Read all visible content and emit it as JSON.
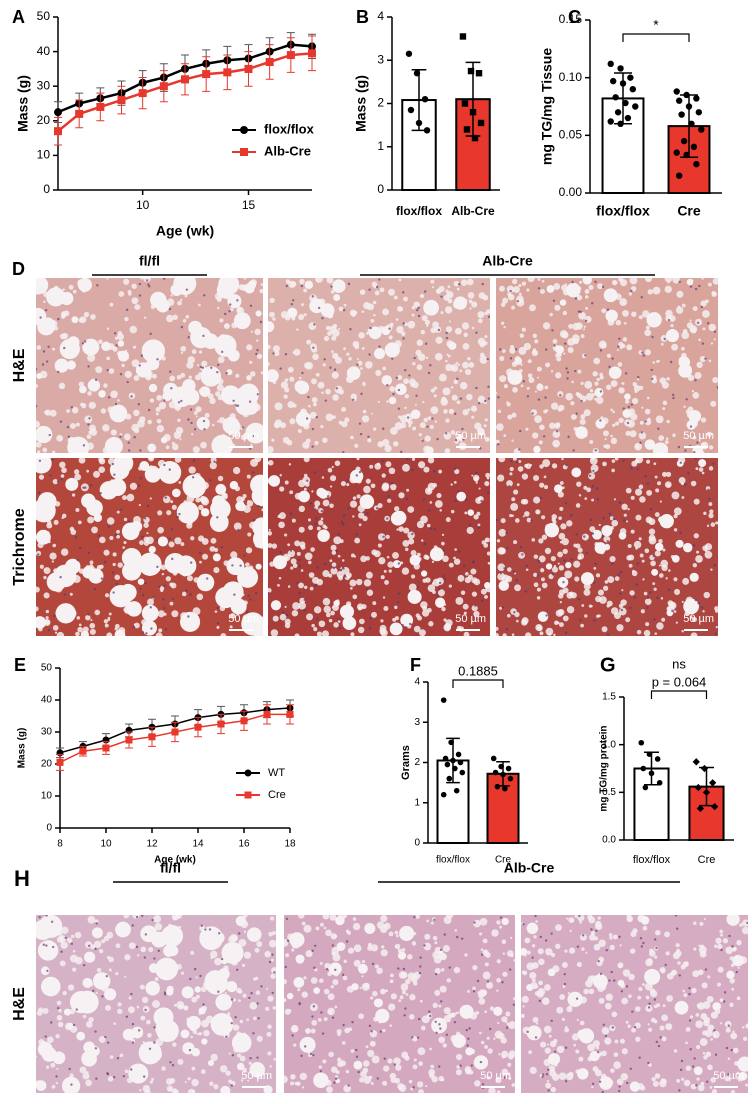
{
  "chart_data": [
    {
      "type": "line",
      "panel": "A",
      "xlabel": "Age (wk)",
      "ylabel": "Mass (g)",
      "x": [
        6,
        7,
        8,
        9,
        10,
        11,
        12,
        13,
        14,
        15,
        16,
        17,
        18
      ],
      "xlim": [
        6,
        18
      ],
      "xticks": [
        10,
        15
      ],
      "ylim": [
        0,
        50
      ],
      "yticks": [
        0,
        10,
        20,
        30,
        40,
        50
      ],
      "series": [
        {
          "name": "flox/flox",
          "color": "#000000",
          "marker": "circle",
          "values": [
            22.5,
            25,
            26.5,
            28,
            31,
            32.5,
            35,
            36.5,
            37.5,
            38,
            40,
            42,
            41.5
          ],
          "errors": [
            3,
            3,
            3,
            3.5,
            3.5,
            4,
            4,
            4,
            4,
            4,
            4,
            3.5,
            3.5
          ]
        },
        {
          "name": "Alb-Cre",
          "color": "#e8372c",
          "marker": "square",
          "values": [
            17,
            22,
            24,
            26,
            28,
            30,
            32,
            33.5,
            34,
            35,
            37,
            39,
            39.5
          ],
          "errors": [
            4,
            4,
            4,
            4,
            4.5,
            4.5,
            4.5,
            5,
            5,
            5,
            5,
            5,
            5
          ]
        }
      ]
    },
    {
      "type": "bar",
      "panel": "B",
      "ylabel": "Mass (g)",
      "categories": [
        "flox/flox",
        "Alb-Cre"
      ],
      "values": [
        2.08,
        2.1
      ],
      "errors": [
        0.7,
        0.85
      ],
      "colors": [
        "#ffffff",
        "#e8372c"
      ],
      "point_markers": [
        "circle",
        "square"
      ],
      "points": [
        [
          3.15,
          2.7,
          2.1,
          1.85,
          1.55,
          1.38
        ],
        [
          3.55,
          2.75,
          2.7,
          2.0,
          1.8,
          1.55,
          1.4,
          1.2
        ]
      ],
      "ylim": [
        0,
        4
      ],
      "yticks": [
        0,
        1,
        2,
        3,
        4
      ]
    },
    {
      "type": "bar",
      "panel": "C",
      "ylabel": "mg TG/mg Tissue",
      "annotations": [
        "*"
      ],
      "categories": [
        "flox/flox",
        "Cre"
      ],
      "values": [
        0.082,
        0.058
      ],
      "errors": [
        0.022,
        0.027
      ],
      "colors": [
        "#ffffff",
        "#e8372c"
      ],
      "point_markers": [
        "circle",
        "circle"
      ],
      "points": [
        [
          0.112,
          0.108,
          0.1,
          0.097,
          0.095,
          0.09,
          0.083,
          0.078,
          0.075,
          0.07,
          0.065,
          0.062,
          0.06
        ],
        [
          0.088,
          0.085,
          0.082,
          0.08,
          0.075,
          0.07,
          0.068,
          0.06,
          0.055,
          0.045,
          0.04,
          0.035,
          0.033,
          0.025,
          0.015
        ]
      ],
      "ylim": [
        0,
        0.15
      ],
      "yticks": [
        {
          "value": 0,
          "label": "0.00"
        },
        {
          "value": 0.05,
          "label": "0.05"
        },
        {
          "value": 0.1,
          "label": "0.10"
        },
        {
          "value": 0.15,
          "label": "0.15"
        }
      ]
    },
    {
      "type": "line",
      "panel": "E",
      "xlabel": "Age (wk)",
      "ylabel": "Mass (g)",
      "x": [
        8,
        9,
        10,
        11,
        12,
        13,
        14,
        15,
        16,
        17,
        18
      ],
      "xlim": [
        8,
        18
      ],
      "xticks": [
        8,
        10,
        12,
        14,
        16,
        18
      ],
      "ylim": [
        0,
        50
      ],
      "yticks": [
        0,
        10,
        20,
        30,
        40,
        50
      ],
      "series": [
        {
          "name": "WT",
          "color": "#000000",
          "marker": "circle",
          "values": [
            23.5,
            25.5,
            27.5,
            30.5,
            31.5,
            32.5,
            34.5,
            35.5,
            36,
            37,
            37.5
          ],
          "errors": [
            1.5,
            1.5,
            2,
            2,
            2.5,
            2.5,
            2.5,
            2.5,
            2.5,
            2.5,
            2.5
          ]
        },
        {
          "name": "Cre",
          "color": "#e8372c",
          "marker": "square",
          "values": [
            20.5,
            24,
            25,
            27.5,
            28.5,
            30,
            31.5,
            32.5,
            33.5,
            35.5,
            35.5
          ],
          "errors": [
            2.5,
            1.5,
            2,
            2.5,
            3,
            3,
            3,
            3,
            3,
            3,
            3
          ]
        }
      ]
    },
    {
      "type": "bar",
      "panel": "F",
      "ylabel": "Grams",
      "annotations": [
        "0.1885"
      ],
      "categories": [
        "flox/flox",
        "Cre"
      ],
      "values": [
        2.05,
        1.72
      ],
      "errors": [
        0.55,
        0.3
      ],
      "colors": [
        "#ffffff",
        "#e8372c"
      ],
      "point_markers": [
        "circle",
        "circle"
      ],
      "points": [
        [
          3.55,
          2.5,
          2.2,
          2.1,
          2.05,
          2.0,
          1.95,
          1.85,
          1.75,
          1.6,
          1.3,
          1.2
        ],
        [
          2.1,
          1.9,
          1.85,
          1.75,
          1.7,
          1.6,
          1.4,
          1.35
        ]
      ],
      "ylim": [
        0,
        4
      ],
      "yticks": [
        0,
        1,
        2,
        3,
        4
      ]
    },
    {
      "type": "bar",
      "panel": "G",
      "ylabel": "mg TG/mg protein",
      "annotations": [
        "ns",
        "p = 0.064"
      ],
      "categories": [
        "flox/flox",
        "Cre"
      ],
      "values": [
        0.75,
        0.56
      ],
      "errors": [
        0.17,
        0.2
      ],
      "colors": [
        "#ffffff",
        "#e8372c"
      ],
      "point_markers": [
        "circle",
        "diamond"
      ],
      "points": [
        [
          1.02,
          0.9,
          0.85,
          0.75,
          0.7,
          0.6,
          0.55
        ],
        [
          0.82,
          0.75,
          0.6,
          0.55,
          0.5,
          0.35,
          0.33
        ]
      ],
      "ylim": [
        0,
        1.5
      ],
      "yticks": [
        {
          "value": 0,
          "label": "0.0"
        },
        {
          "value": 0.5,
          "label": "0.5"
        },
        {
          "value": 1,
          "label": "1.0"
        },
        {
          "value": 1.5,
          "label": "1.5"
        }
      ]
    }
  ],
  "histology": [
    {
      "panel": "D",
      "groups": [
        "fl/fl",
        "Alb-Cre"
      ],
      "stains": [
        "H&E",
        "Trichrome"
      ],
      "scale_bar": "50 µm"
    },
    {
      "panel": "H",
      "groups": [
        "fl/fl",
        "Alb-Cre"
      ],
      "stains": [
        "H&E"
      ],
      "scale_bar": "50 µm"
    }
  ]
}
